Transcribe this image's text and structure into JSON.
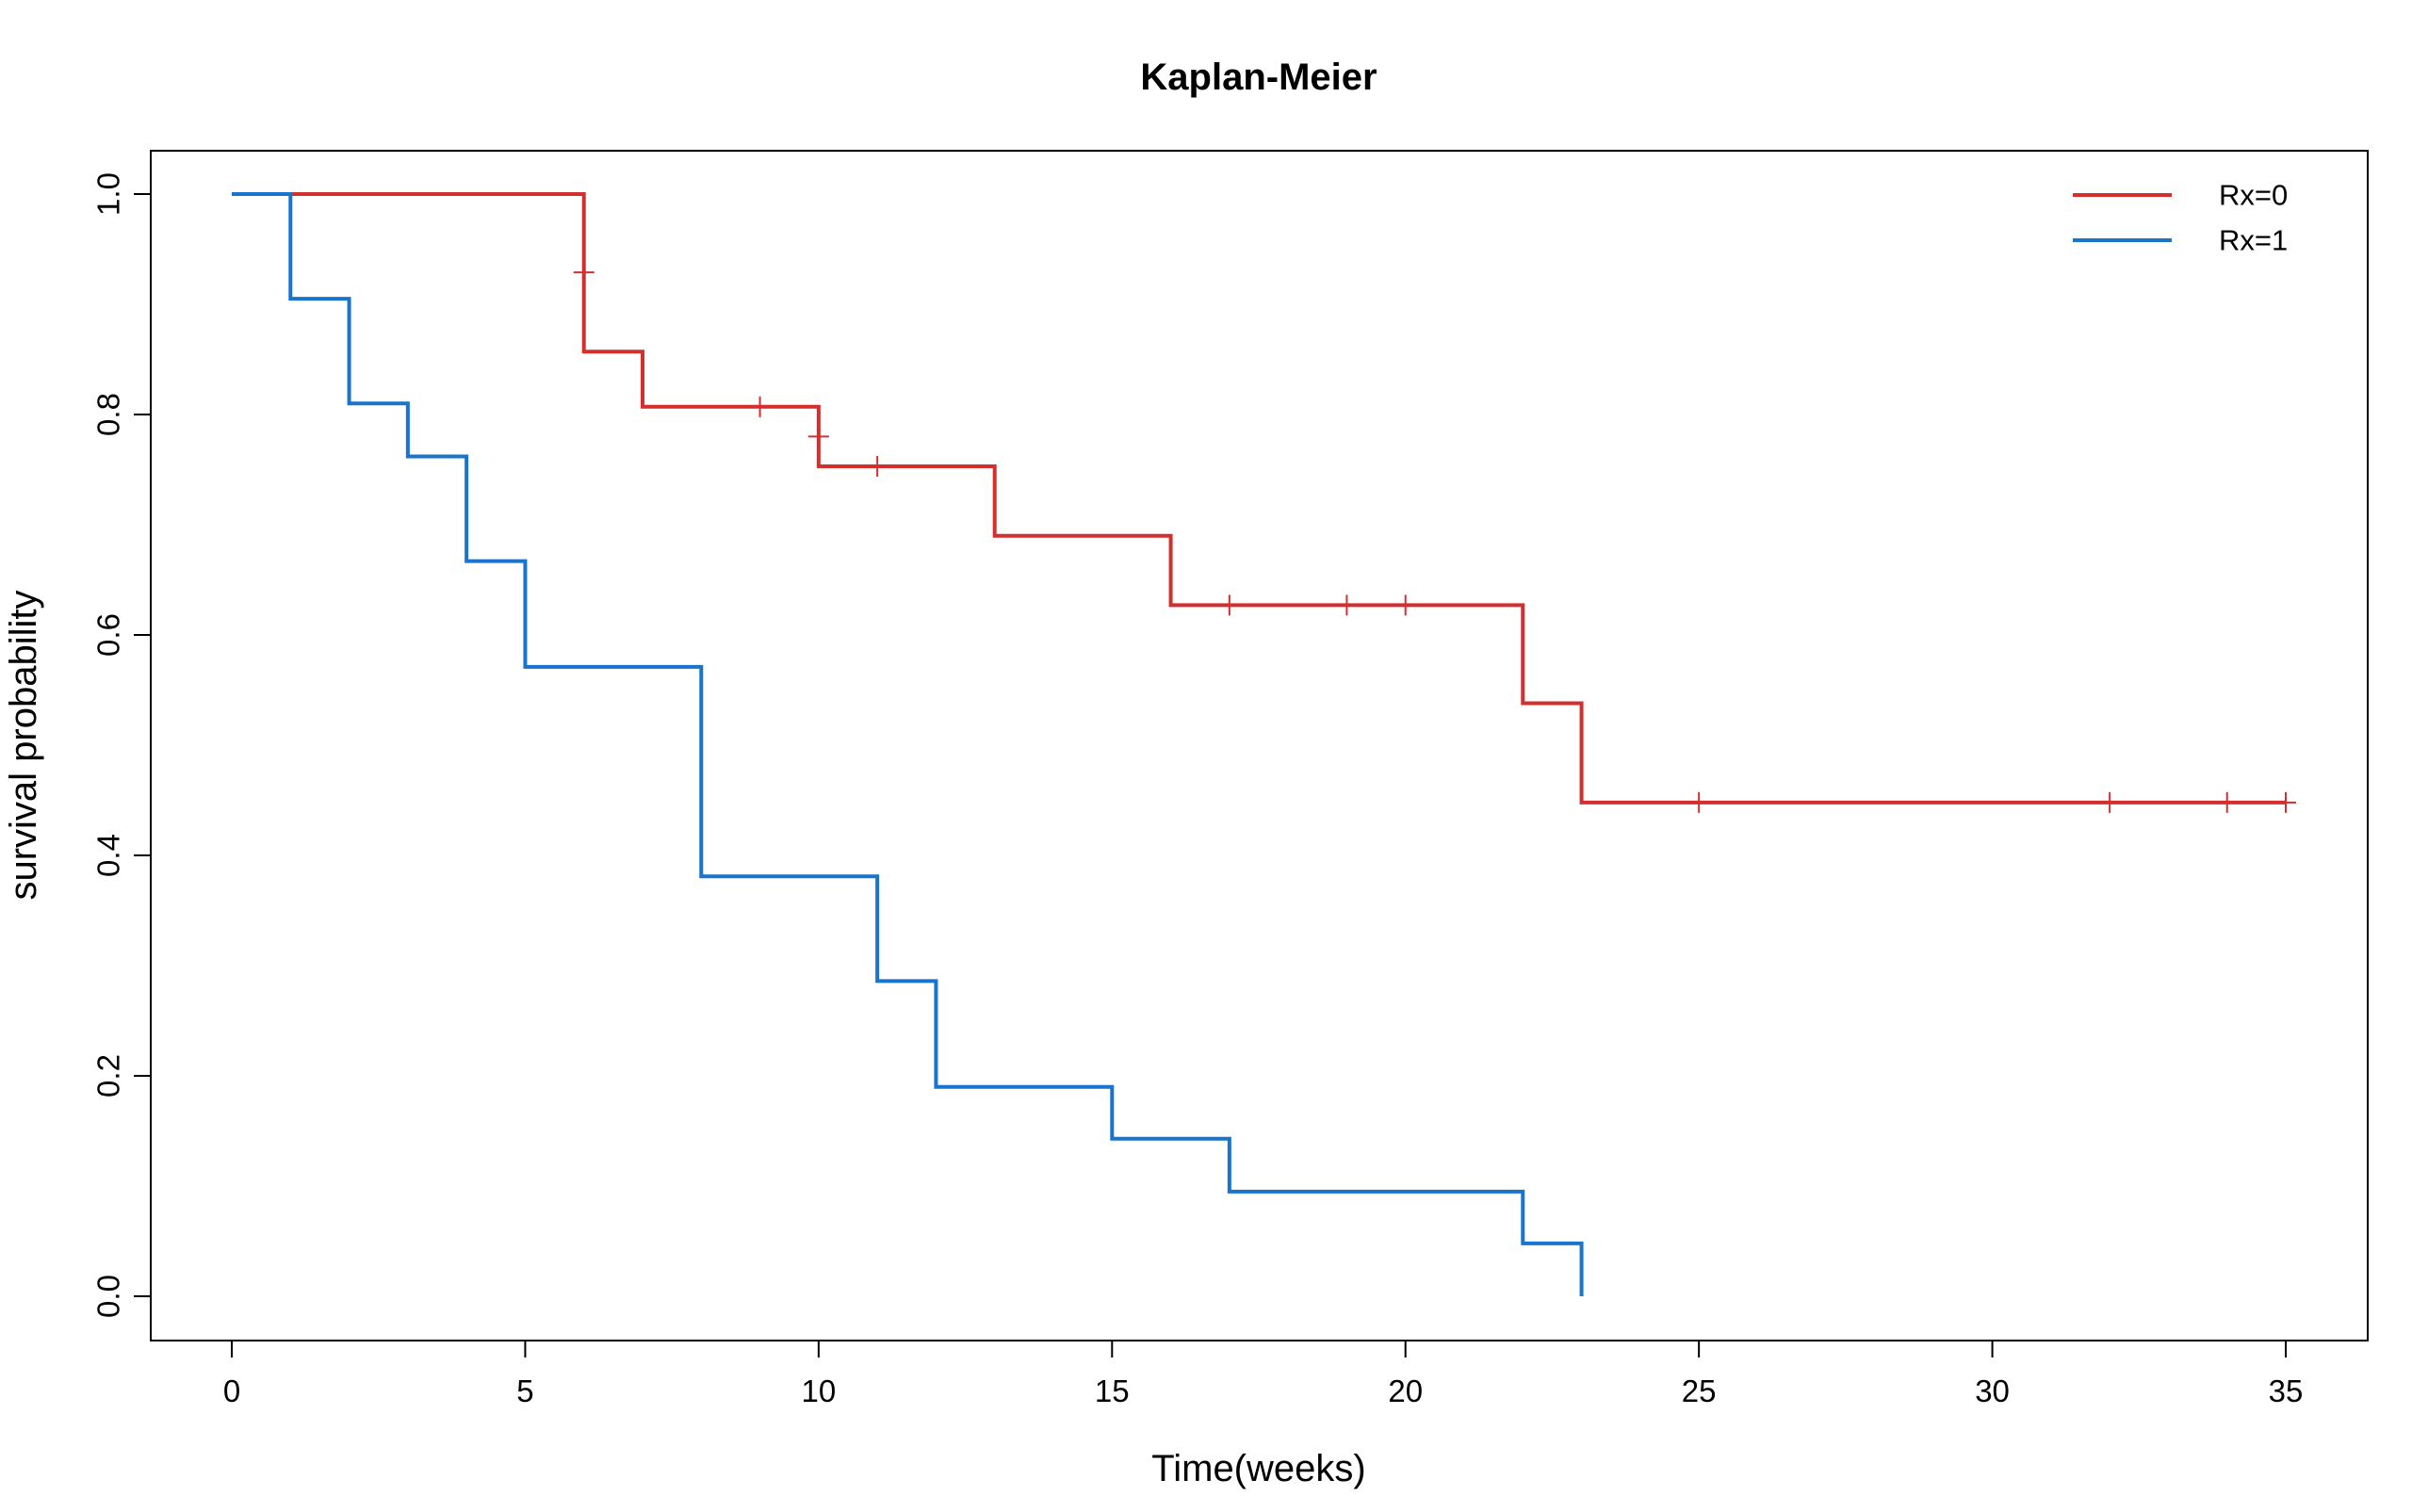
{
  "chart_data": {
    "type": "line",
    "title": "Kaplan-Meier",
    "xlabel": "Time(weeks)",
    "ylabel": "survival probability",
    "xlim": [
      0,
      35
    ],
    "ylim": [
      0,
      1
    ],
    "x_ticks": [
      "0",
      "5",
      "10",
      "15",
      "20",
      "25",
      "30",
      "35"
    ],
    "y_ticks": [
      "0.0",
      "0.2",
      "0.4",
      "0.6",
      "0.8",
      "1.0"
    ],
    "grid": false,
    "legend_position": "top-right",
    "series": [
      {
        "name": "Rx=0",
        "color": "#d32f2f",
        "steps": [
          {
            "t": 0,
            "s": 1.0
          },
          {
            "t": 6,
            "s": 0.857
          },
          {
            "t": 7,
            "s": 0.807
          },
          {
            "t": 10,
            "s": 0.753
          },
          {
            "t": 13,
            "s": 0.69
          },
          {
            "t": 16,
            "s": 0.627
          },
          {
            "t": 22,
            "s": 0.538
          },
          {
            "t": 23,
            "s": 0.448
          }
        ],
        "end_time": 35,
        "censored": [
          {
            "t": 6,
            "s": 0.929
          },
          {
            "t": 9,
            "s": 0.807
          },
          {
            "t": 10,
            "s": 0.78
          },
          {
            "t": 11,
            "s": 0.753
          },
          {
            "t": 17,
            "s": 0.627
          },
          {
            "t": 19,
            "s": 0.627
          },
          {
            "t": 20,
            "s": 0.627
          },
          {
            "t": 25,
            "s": 0.448
          },
          {
            "t": 32,
            "s": 0.448
          },
          {
            "t": 34,
            "s": 0.448
          },
          {
            "t": 35,
            "s": 0.448
          }
        ]
      },
      {
        "name": "Rx=1",
        "color": "#1874cd",
        "steps": [
          {
            "t": 0,
            "s": 1.0
          },
          {
            "t": 1,
            "s": 0.905
          },
          {
            "t": 2,
            "s": 0.81
          },
          {
            "t": 3,
            "s": 0.762
          },
          {
            "t": 4,
            "s": 0.667
          },
          {
            "t": 5,
            "s": 0.571
          },
          {
            "t": 8,
            "s": 0.381
          },
          {
            "t": 11,
            "s": 0.286
          },
          {
            "t": 12,
            "s": 0.19
          },
          {
            "t": 15,
            "s": 0.143
          },
          {
            "t": 17,
            "s": 0.095
          },
          {
            "t": 22,
            "s": 0.048
          },
          {
            "t": 23,
            "s": 0.0
          }
        ],
        "end_time": 23,
        "censored": []
      }
    ]
  }
}
